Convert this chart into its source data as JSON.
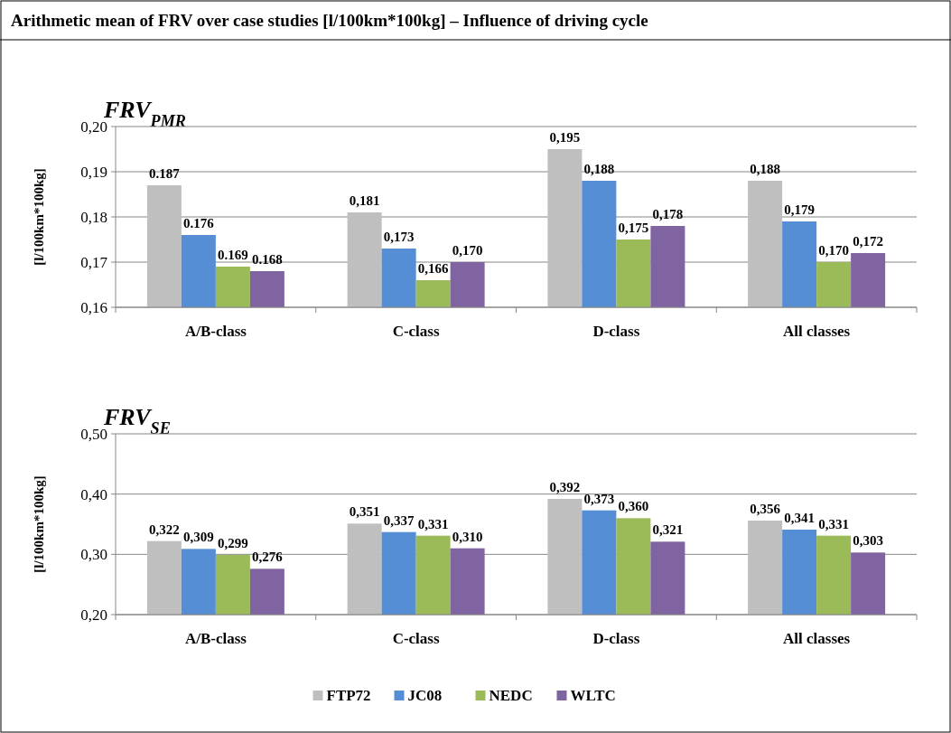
{
  "chart_data": [
    {
      "type": "other",
      "title": "Arithmetic mean of FRV over case studies [l/100km*100kg] – Influence of driving cycle"
    },
    {
      "type": "bar",
      "title": "FRV$_{PMR}$",
      "ylabel": "[l/100km*100kg]",
      "categories": [
        "A/B-class",
        "C-class",
        "D-class",
        "All classes"
      ],
      "ylim": [
        0.16,
        0.2
      ],
      "yticks": [
        {
          "value": 0.16,
          "label": "0,16"
        },
        {
          "value": 0.17,
          "label": "0,17"
        },
        {
          "value": 0.18,
          "label": "0,18"
        },
        {
          "value": 0.19,
          "label": "0,19"
        },
        {
          "value": 0.2,
          "label": "0,20"
        }
      ],
      "grid": "y",
      "series": [
        {
          "color": "#bfbfbf",
          "values": [
            0.187,
            0.181,
            0.195,
            0.188
          ],
          "value_labels": [
            "0.187",
            "0,181",
            "0,195",
            "0,188"
          ]
        },
        {
          "color": "#558ed5",
          "values": [
            0.176,
            0.173,
            0.188,
            0.179
          ],
          "value_labels": [
            "0.176",
            "0,173",
            "0,188",
            "0,179"
          ]
        },
        {
          "color": "#9bbb59",
          "values": [
            0.169,
            0.166,
            0.175,
            0.17
          ],
          "value_labels": [
            "0.169",
            "0,166",
            "0,175",
            "0,170"
          ]
        },
        {
          "color": "#8064a2",
          "values": [
            0.168,
            0.17,
            0.178,
            0.172
          ],
          "value_labels": [
            "0.168",
            "0,170",
            "0,178",
            "0,172"
          ]
        }
      ]
    },
    {
      "type": "bar",
      "title": "FRV$_{SE}$",
      "ylabel": "[l/100km*100kg]",
      "categories": [
        "A/B-class",
        "C-class",
        "D-class",
        "All classes"
      ],
      "ylim": [
        0.2,
        0.5
      ],
      "yticks": [
        {
          "value": 0.2,
          "label": "0,20"
        },
        {
          "value": 0.3,
          "label": "0,30"
        },
        {
          "value": 0.4,
          "label": "0,40"
        },
        {
          "value": 0.5,
          "label": "0,50"
        }
      ],
      "grid": "y",
      "legend": "bottom",
      "series": [
        {
          "name": "FTP72",
          "color": "#bfbfbf",
          "values": [
            0.322,
            0.351,
            0.392,
            0.356
          ],
          "value_labels": [
            "0,322",
            "0,351",
            "0,392",
            "0,356"
          ]
        },
        {
          "name": "JC08",
          "color": "#558ed5",
          "values": [
            0.309,
            0.337,
            0.373,
            0.341
          ],
          "value_labels": [
            "0,309",
            "0,337",
            "0,373",
            "0,341"
          ]
        },
        {
          "name": "NEDC",
          "color": "#9bbb59",
          "values": [
            0.299,
            0.331,
            0.36,
            0.331
          ],
          "value_labels": [
            "0,299",
            "0,331",
            "0,360",
            "0,331"
          ]
        },
        {
          "name": "WLTC",
          "color": "#8064a2",
          "values": [
            0.276,
            0.31,
            0.321,
            0.303
          ],
          "value_labels": [
            "0,276",
            "0,310",
            "0,321",
            "0,303"
          ]
        }
      ]
    }
  ]
}
